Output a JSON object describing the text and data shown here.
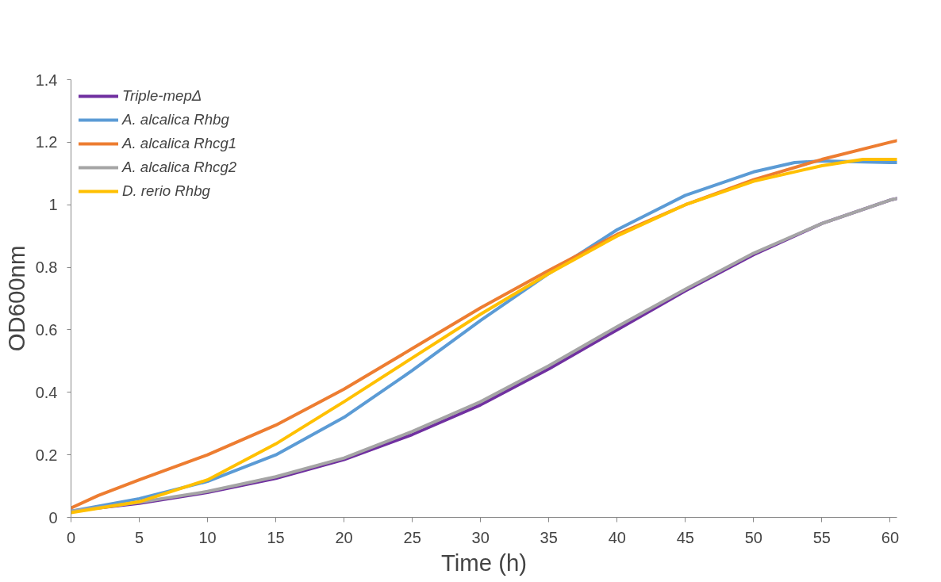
{
  "chart_data": {
    "type": "line",
    "xlabel": "Time (h)",
    "ylabel": "OD600nm",
    "xlim": [
      0,
      60.5
    ],
    "ylim": [
      0,
      1.4
    ],
    "xticks": [
      0,
      5,
      10,
      15,
      20,
      25,
      30,
      35,
      40,
      45,
      50,
      55,
      60
    ],
    "yticks": [
      {
        "value": 0,
        "label": "0"
      },
      {
        "value": 0.2,
        "label": "0.2"
      },
      {
        "value": 0.4,
        "label": "0.4"
      },
      {
        "value": 0.6,
        "label": "0.6"
      },
      {
        "value": 0.8,
        "label": "0.8"
      },
      {
        "value": 1,
        "label": "1"
      },
      {
        "value": 1.2,
        "label": "1.2"
      },
      {
        "value": 1.4,
        "label": "1.4"
      }
    ],
    "grid": false,
    "legend": "top left",
    "line_style": "solid",
    "marker": "none",
    "series": [
      {
        "name": "Triple-mepΔ",
        "color": "#7030a0",
        "x": [
          0,
          5,
          10,
          15,
          20,
          25,
          30,
          35,
          40,
          45,
          50,
          55,
          60,
          60.5
        ],
        "values": [
          0.02,
          0.045,
          0.08,
          0.125,
          0.185,
          0.265,
          0.36,
          0.475,
          0.6,
          0.725,
          0.84,
          0.94,
          1.015,
          1.02
        ]
      },
      {
        "name": "A. alcalica Rhbg",
        "color": "#5b9bd5",
        "x": [
          0,
          5,
          10,
          15,
          20,
          25,
          30,
          35,
          40,
          45,
          50,
          53,
          55,
          60,
          60.5
        ],
        "values": [
          0.02,
          0.06,
          0.115,
          0.2,
          0.32,
          0.47,
          0.63,
          0.78,
          0.92,
          1.03,
          1.105,
          1.135,
          1.14,
          1.135,
          1.135
        ]
      },
      {
        "name": "A. alcalica Rhcg1",
        "color": "#ed7d31",
        "x": [
          0,
          2,
          5,
          10,
          15,
          20,
          25,
          30,
          35,
          40,
          45,
          50,
          55,
          60,
          60.5
        ],
        "values": [
          0.03,
          0.07,
          0.12,
          0.2,
          0.295,
          0.41,
          0.54,
          0.67,
          0.79,
          0.905,
          1.0,
          1.08,
          1.145,
          1.2,
          1.205
        ]
      },
      {
        "name": "A. alcalica Rhcg2",
        "color": "#a5a5a5",
        "x": [
          0,
          5,
          10,
          15,
          20,
          25,
          30,
          35,
          40,
          45,
          50,
          55,
          60,
          60.5
        ],
        "values": [
          0.02,
          0.048,
          0.083,
          0.13,
          0.19,
          0.275,
          0.37,
          0.485,
          0.61,
          0.73,
          0.845,
          0.94,
          1.015,
          1.02
        ]
      },
      {
        "name": "D. rerio Rhbg",
        "color": "#ffc000",
        "x": [
          0,
          5,
          10,
          15,
          20,
          25,
          30,
          35,
          40,
          45,
          50,
          55,
          58,
          60.5
        ],
        "values": [
          0.015,
          0.05,
          0.12,
          0.235,
          0.37,
          0.51,
          0.65,
          0.78,
          0.9,
          1.0,
          1.075,
          1.125,
          1.145,
          1.145
        ]
      }
    ]
  }
}
